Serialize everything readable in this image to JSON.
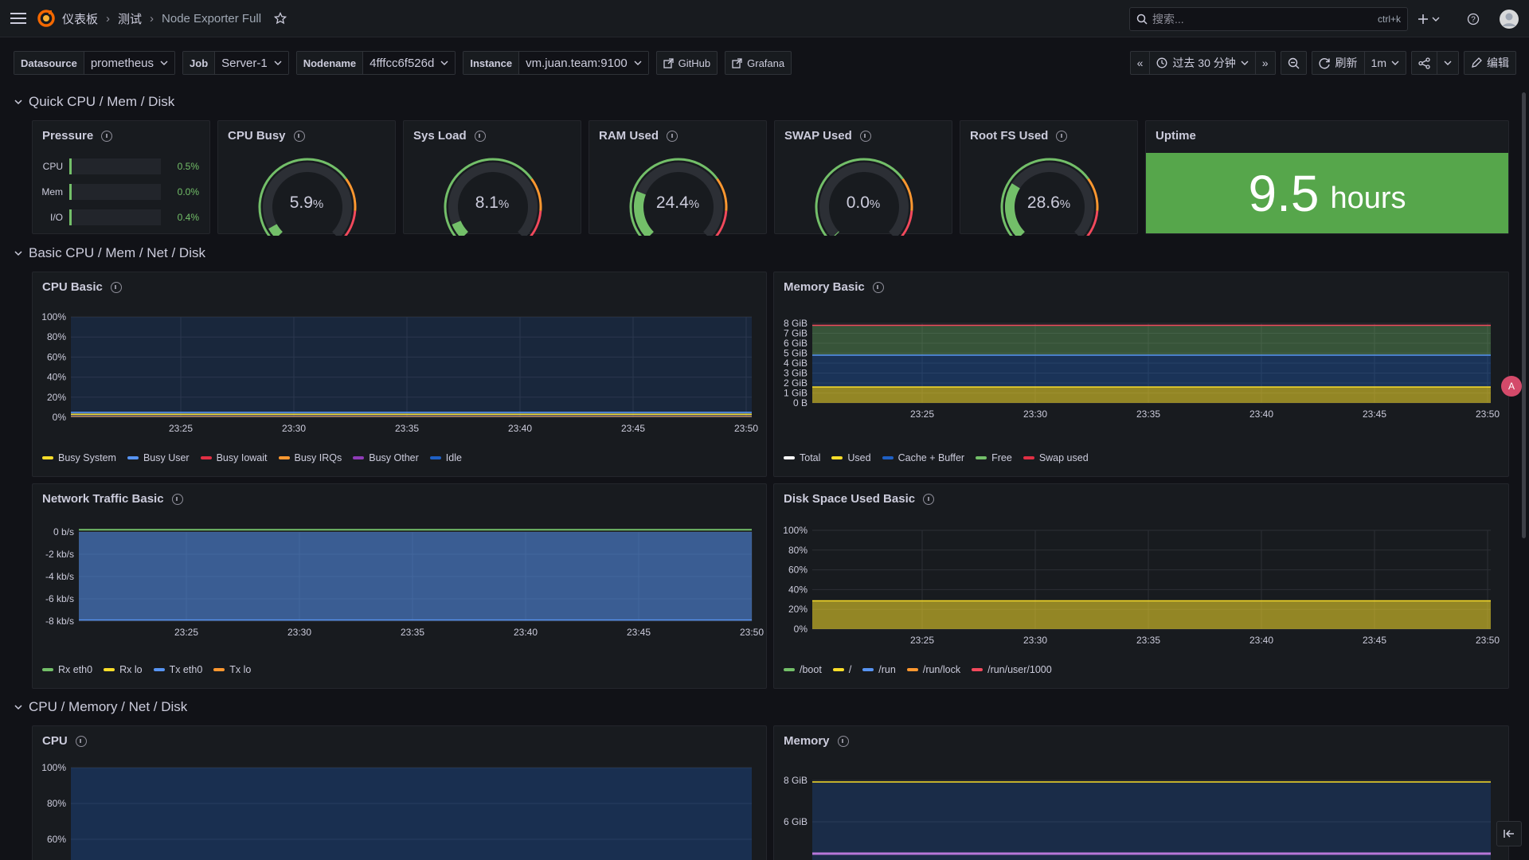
{
  "breadcrumb": {
    "home": "仪表板",
    "folder": "测试",
    "dashboard": "Node Exporter Full"
  },
  "search": {
    "placeholder": "搜索...",
    "shortcut": "ctrl+k"
  },
  "variables": [
    {
      "label": "Datasource",
      "value": "prometheus"
    },
    {
      "label": "Job",
      "value": "Server-1"
    },
    {
      "label": "Nodename",
      "value": "4fffcc6f526d"
    },
    {
      "label": "Instance",
      "value": "vm.juan.team:9100"
    }
  ],
  "links": {
    "github": "GitHub",
    "grafana": "Grafana"
  },
  "toolbar": {
    "time_range": "过去 30 分钟",
    "refresh": "刷新",
    "interval": "1m",
    "edit": "编辑"
  },
  "rows": {
    "quick": "Quick CPU / Mem / Disk",
    "basic": "Basic CPU / Mem / Net / Disk",
    "full": "CPU / Memory / Net / Disk"
  },
  "pressure": {
    "title": "Pressure",
    "items": [
      {
        "label": "CPU",
        "value": "0.5%"
      },
      {
        "label": "Mem",
        "value": "0.0%"
      },
      {
        "label": "I/O",
        "value": "0.4%"
      }
    ]
  },
  "gauges": [
    {
      "title": "CPU Busy",
      "value": "5.9",
      "unit": "%",
      "fraction": 0.059
    },
    {
      "title": "Sys Load",
      "value": "8.1",
      "unit": "%",
      "fraction": 0.081
    },
    {
      "title": "RAM Used",
      "value": "24.4",
      "unit": "%",
      "fraction": 0.244
    },
    {
      "title": "SWAP Used",
      "value": "0.0",
      "unit": "%",
      "fraction": 0.0
    },
    {
      "title": "Root FS Used",
      "value": "28.6",
      "unit": "%",
      "fraction": 0.286
    }
  ],
  "uptime": {
    "title": "Uptime",
    "value": "9.5",
    "unit": "hours"
  },
  "colors": {
    "green": "#73bf69",
    "yellow": "#fade2a",
    "orange": "#ff9830",
    "red": "#f2495c",
    "blue": "#5794f2",
    "purple": "#b877d9",
    "uptime_bg": "#56a64b"
  },
  "x_ticks": [
    "23:25",
    "23:30",
    "23:35",
    "23:40",
    "23:45",
    "23:50"
  ],
  "cpu_basic": {
    "title": "CPU Basic",
    "y_ticks": [
      "100%",
      "80%",
      "60%",
      "40%",
      "20%",
      "0%"
    ],
    "legend": [
      {
        "name": "Busy System",
        "color": "#fade2a"
      },
      {
        "name": "Busy User",
        "color": "#5794f2"
      },
      {
        "name": "Busy Iowait",
        "color": "#e02f44"
      },
      {
        "name": "Busy IRQs",
        "color": "#ff9830"
      },
      {
        "name": "Busy Other",
        "color": "#8f3bb8"
      },
      {
        "name": "Idle",
        "color": "#1f60c4"
      }
    ]
  },
  "memory_basic": {
    "title": "Memory Basic",
    "y_ticks": [
      "8 GiB",
      "7 GiB",
      "6 GiB",
      "5 GiB",
      "4 GiB",
      "3 GiB",
      "2 GiB",
      "1 GiB",
      "0 B"
    ],
    "legend": [
      {
        "name": "Total",
        "color": "#ffffff"
      },
      {
        "name": "Used",
        "color": "#fade2a"
      },
      {
        "name": "Cache + Buffer",
        "color": "#1f60c4"
      },
      {
        "name": "Free",
        "color": "#73bf69"
      },
      {
        "name": "Swap used",
        "color": "#e02f44"
      }
    ]
  },
  "network_basic": {
    "title": "Network Traffic Basic",
    "y_ticks": [
      "0 b/s",
      "-2 kb/s",
      "-4 kb/s",
      "-6 kb/s",
      "-8 kb/s"
    ],
    "legend": [
      {
        "name": "Rx eth0",
        "color": "#73bf69"
      },
      {
        "name": "Rx lo",
        "color": "#fade2a"
      },
      {
        "name": "Tx eth0",
        "color": "#5794f2"
      },
      {
        "name": "Tx lo",
        "color": "#ff9830"
      }
    ]
  },
  "disk_basic": {
    "title": "Disk Space Used Basic",
    "y_ticks": [
      "100%",
      "80%",
      "60%",
      "40%",
      "20%",
      "0%"
    ],
    "legend": [
      {
        "name": "/boot",
        "color": "#73bf69"
      },
      {
        "name": "/",
        "color": "#fade2a"
      },
      {
        "name": "/run",
        "color": "#5794f2"
      },
      {
        "name": "/run/lock",
        "color": "#ff9830"
      },
      {
        "name": "/run/user/1000",
        "color": "#f2495c"
      }
    ]
  },
  "cpu_full": {
    "title": "CPU",
    "y_ticks": [
      "100%",
      "80%",
      "60%"
    ]
  },
  "memory_full": {
    "title": "Memory",
    "y_ticks": [
      "8 GiB",
      "6 GiB"
    ]
  },
  "chart_data": [
    {
      "type": "area",
      "title": "CPU Basic",
      "x": [
        "23:25",
        "23:30",
        "23:35",
        "23:40",
        "23:45",
        "23:50"
      ],
      "ylim": [
        0,
        100
      ],
      "series": [
        {
          "name": "Busy System",
          "values": [
            2,
            2,
            2,
            2,
            2,
            2
          ]
        },
        {
          "name": "Busy User",
          "values": [
            3,
            3,
            3,
            3,
            3,
            3
          ]
        },
        {
          "name": "Idle",
          "values": [
            95,
            95,
            95,
            95,
            95,
            95
          ]
        }
      ]
    },
    {
      "type": "area",
      "title": "Memory Basic",
      "x": [
        "23:25",
        "23:30",
        "23:35",
        "23:40",
        "23:45",
        "23:50"
      ],
      "ylim": [
        0,
        8
      ],
      "series": [
        {
          "name": "Total",
          "values": [
            7.8,
            7.8,
            7.8,
            7.8,
            7.8,
            7.8
          ]
        },
        {
          "name": "Used",
          "values": [
            1.6,
            1.6,
            1.6,
            1.6,
            1.6,
            1.6
          ]
        },
        {
          "name": "Cache + Buffer",
          "values": [
            3.2,
            3.2,
            3.2,
            3.2,
            3.2,
            3.2
          ]
        },
        {
          "name": "Free",
          "values": [
            3,
            3,
            3,
            3,
            3,
            3
          ]
        }
      ]
    },
    {
      "type": "area",
      "title": "Network Traffic Basic",
      "x": [
        "23:25",
        "23:30",
        "23:35",
        "23:40",
        "23:45",
        "23:50"
      ],
      "ylim": [
        -8,
        0
      ],
      "series": [
        {
          "name": "Rx eth0",
          "values": [
            0.2,
            0.2,
            0.2,
            0.2,
            0.2,
            0.2
          ]
        },
        {
          "name": "Tx eth0",
          "values": [
            -7.9,
            -7.9,
            -7.9,
            -7.9,
            -7.9,
            -7.9
          ]
        }
      ]
    },
    {
      "type": "area",
      "title": "Disk Space Used Basic",
      "x": [
        "23:25",
        "23:30",
        "23:35",
        "23:40",
        "23:45",
        "23:50"
      ],
      "ylim": [
        0,
        100
      ],
      "series": [
        {
          "name": "/",
          "values": [
            28.6,
            28.6,
            28.6,
            28.6,
            28.6,
            28.6
          ]
        }
      ]
    }
  ]
}
